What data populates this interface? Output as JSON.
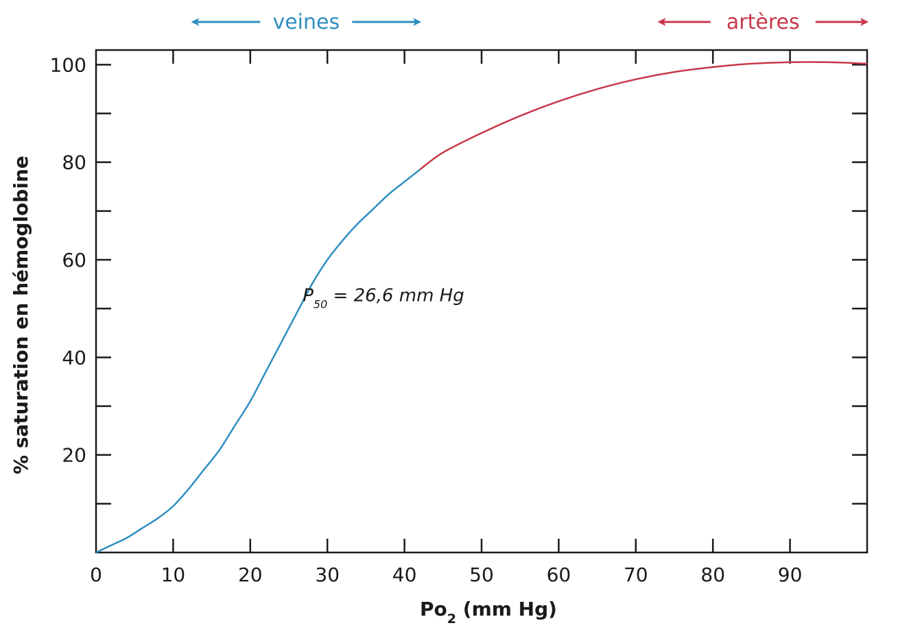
{
  "chart_data": {
    "type": "line",
    "xlabel": {
      "main": "Po",
      "sub": "2",
      "rest": " (mm Hg)"
    },
    "ylabel": "% saturation en hémoglobine",
    "xlim": [
      0,
      100
    ],
    "ylim": [
      0,
      103
    ],
    "x_ticks": [
      0,
      10,
      20,
      30,
      40,
      50,
      60,
      70,
      80,
      90
    ],
    "x_tick_labels": [
      "0",
      "10",
      "20",
      "30",
      "40",
      "50",
      "60",
      "70",
      "80",
      "90"
    ],
    "y_ticks": [
      20,
      40,
      60,
      80,
      100
    ],
    "y_tick_labels": [
      "20",
      "40",
      "60",
      "80",
      "100"
    ],
    "y_minor_ticks": [
      10,
      30,
      50,
      70,
      90
    ],
    "grid": false,
    "series": [
      {
        "color": "#2e8fc0",
        "x": [
          0,
          2,
          4,
          6,
          8,
          10,
          12,
          14,
          16,
          18,
          20,
          22,
          24,
          26,
          28,
          30,
          32,
          34,
          36,
          38,
          40,
          42
        ],
        "y": [
          0,
          1.5,
          3,
          5,
          7,
          9.5,
          13,
          17,
          21,
          26,
          31,
          37,
          43,
          49,
          55,
          60,
          64,
          67.5,
          70.5,
          73.5,
          76,
          78.5
        ]
      },
      {
        "color": "#c8384a",
        "x": [
          42,
          45,
          50,
          55,
          60,
          65,
          70,
          75,
          80,
          85,
          90,
          95,
          100
        ],
        "y": [
          78.5,
          82,
          86,
          89.5,
          92.5,
          95,
          97,
          98.5,
          99.5,
          100.2,
          100.5,
          100.5,
          100.2
        ]
      }
    ],
    "annotations": [
      {
        "text_main": "P",
        "text_sub": "50",
        "text_rest": " = 26,6 mm Hg",
        "x": 26.8,
        "y": 51.5
      }
    ],
    "regions": [
      {
        "label": "veines",
        "x_start": 12.5,
        "x_end": 42,
        "color": "#2e8fc0"
      },
      {
        "label": "artères",
        "x_start": 73,
        "x_end": 100,
        "color": "#c8384a"
      }
    ]
  }
}
